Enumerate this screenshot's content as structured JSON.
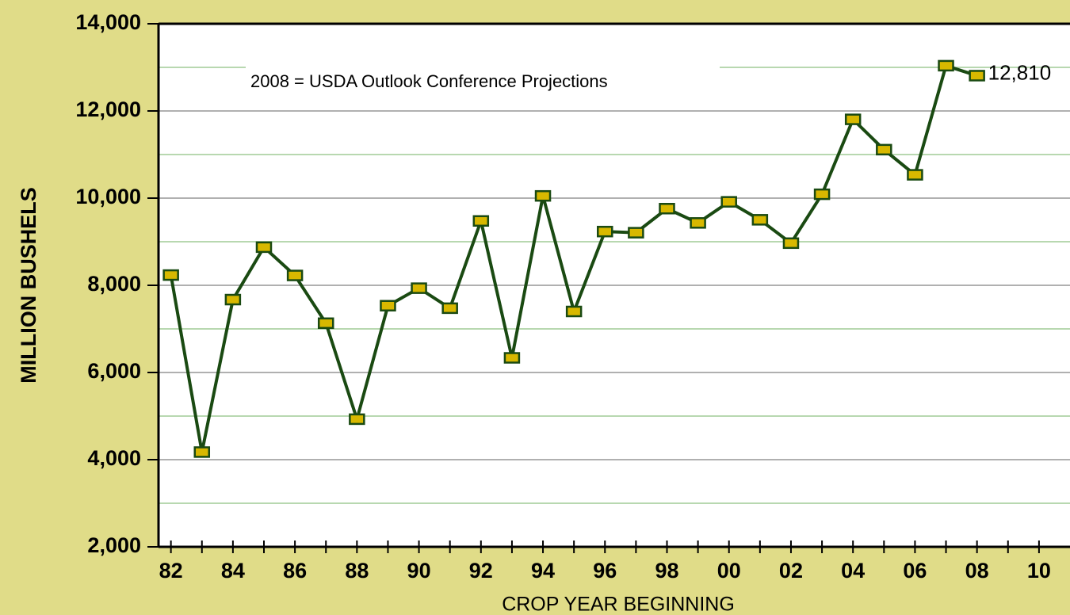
{
  "chart_data": {
    "type": "line",
    "y_label": "MILLION BUSHELS",
    "x_label": "CROP YEAR BEGINNING",
    "annotation": "2008 = USDA Outlook Conference Projections",
    "x": [
      1982,
      1983,
      1984,
      1985,
      1986,
      1987,
      1988,
      1989,
      1990,
      1991,
      1992,
      1993,
      1994,
      1995,
      1996,
      1997,
      1998,
      1999,
      2000,
      2001,
      2002,
      2003,
      2004,
      2005,
      2006,
      2007,
      2008
    ],
    "series": [
      {
        "color": "#1a4a12",
        "values": [
          8235,
          4174,
          7672,
          8875,
          8226,
          7131,
          4929,
          7532,
          7934,
          7475,
          9477,
          6336,
          10051,
          7400,
          9233,
          9207,
          9759,
          9431,
          9915,
          9503,
          8967,
          10089,
          11807,
          11112,
          10535,
          13038,
          12810
        ],
        "value_labels": [
          null,
          null,
          null,
          null,
          null,
          null,
          null,
          null,
          null,
          null,
          null,
          null,
          null,
          null,
          null,
          null,
          null,
          null,
          null,
          null,
          null,
          null,
          null,
          null,
          null,
          null,
          "12,810"
        ]
      }
    ],
    "marker_color": "#d8b800",
    "xlim": [
      1981.6,
      2011
    ],
    "xticks": [
      {
        "value": 1982,
        "label": "82"
      },
      {
        "value": 1984,
        "label": "84"
      },
      {
        "value": 1986,
        "label": "86"
      },
      {
        "value": 1988,
        "label": "88"
      },
      {
        "value": 1990,
        "label": "90"
      },
      {
        "value": 1992,
        "label": "92"
      },
      {
        "value": 1994,
        "label": "94"
      },
      {
        "value": 1996,
        "label": "96"
      },
      {
        "value": 1998,
        "label": "98"
      },
      {
        "value": 2000,
        "label": "00"
      },
      {
        "value": 2002,
        "label": "02"
      },
      {
        "value": 2004,
        "label": "04"
      },
      {
        "value": 2006,
        "label": "06"
      },
      {
        "value": 2008,
        "label": "08"
      },
      {
        "value": 2010,
        "label": "10"
      }
    ],
    "xminor_ticks": [
      1983,
      1985,
      1987,
      1989,
      1991,
      1993,
      1995,
      1997,
      1999,
      2001,
      2003,
      2005,
      2007,
      2009
    ],
    "ylim": [
      2000,
      14000
    ],
    "yticks": [
      {
        "value": 2000,
        "label": "2,000"
      },
      {
        "value": 4000,
        "label": "4,000"
      },
      {
        "value": 6000,
        "label": "6,000"
      },
      {
        "value": 8000,
        "label": "8,000"
      },
      {
        "value": 10000,
        "label": "10,000"
      },
      {
        "value": 12000,
        "label": "12,000"
      },
      {
        "value": 14000,
        "label": "14,000"
      }
    ],
    "yminor_ticks": [
      3000,
      5000,
      7000,
      9000,
      11000,
      13000
    ],
    "grid": true
  }
}
